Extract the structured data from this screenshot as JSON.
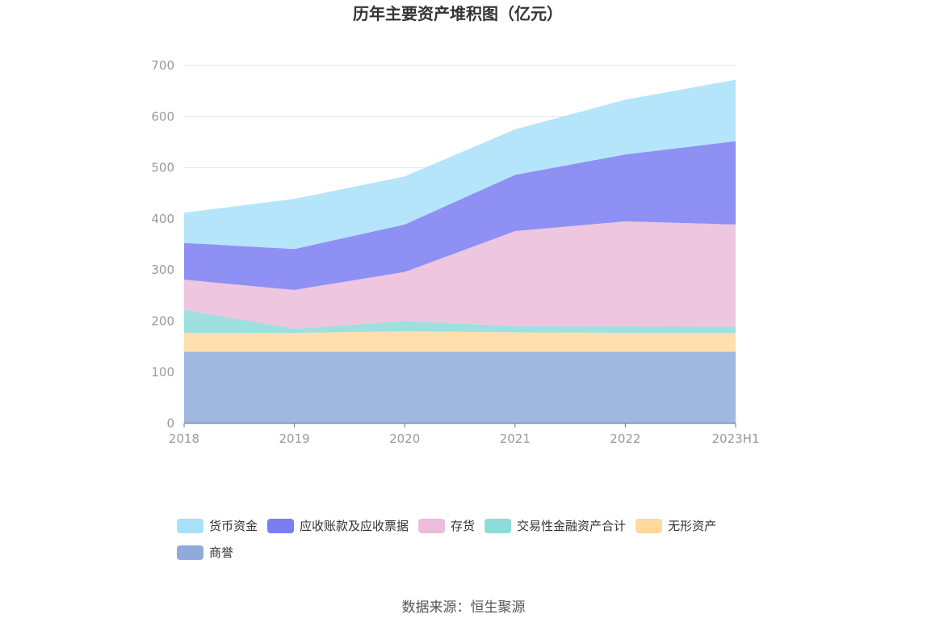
{
  "chart_data": {
    "type": "area",
    "stacked": true,
    "title": "历年主要资产堆积图（亿元）",
    "categories": [
      "2018",
      "2019",
      "2020",
      "2021",
      "2022",
      "2023H1"
    ],
    "ylim": [
      0,
      700
    ],
    "yticks": [
      0,
      100,
      200,
      300,
      400,
      500,
      600,
      700
    ],
    "grid": true,
    "series": [
      {
        "name": "商誉",
        "color": "#8fabdb",
        "values": [
          140,
          140,
          140,
          140,
          140,
          140
        ]
      },
      {
        "name": "无形资产",
        "color": "#ffd99e",
        "values": [
          37,
          37,
          40,
          38,
          37,
          37
        ]
      },
      {
        "name": "交易性金融资产合计",
        "color": "#8ddbd9",
        "values": [
          45,
          8,
          20,
          12,
          13,
          12
        ]
      },
      {
        "name": "存货",
        "color": "#ebbcdb",
        "values": [
          59,
          76,
          96,
          186,
          205,
          200
        ]
      },
      {
        "name": "应收账款及应收票据",
        "color": "#7b7df2",
        "values": [
          72,
          80,
          93,
          110,
          131,
          163
        ]
      },
      {
        "name": "货币资金",
        "color": "#a8e0f9",
        "values": [
          59,
          98,
          94,
          89,
          107,
          120
        ]
      }
    ],
    "legend_order": [
      "货币资金",
      "应收账款及应收票据",
      "存货",
      "交易性金融资产合计",
      "无形资产",
      "商誉"
    ],
    "legend_position": "bottom"
  },
  "source_text": "数据来源：恒生聚源"
}
